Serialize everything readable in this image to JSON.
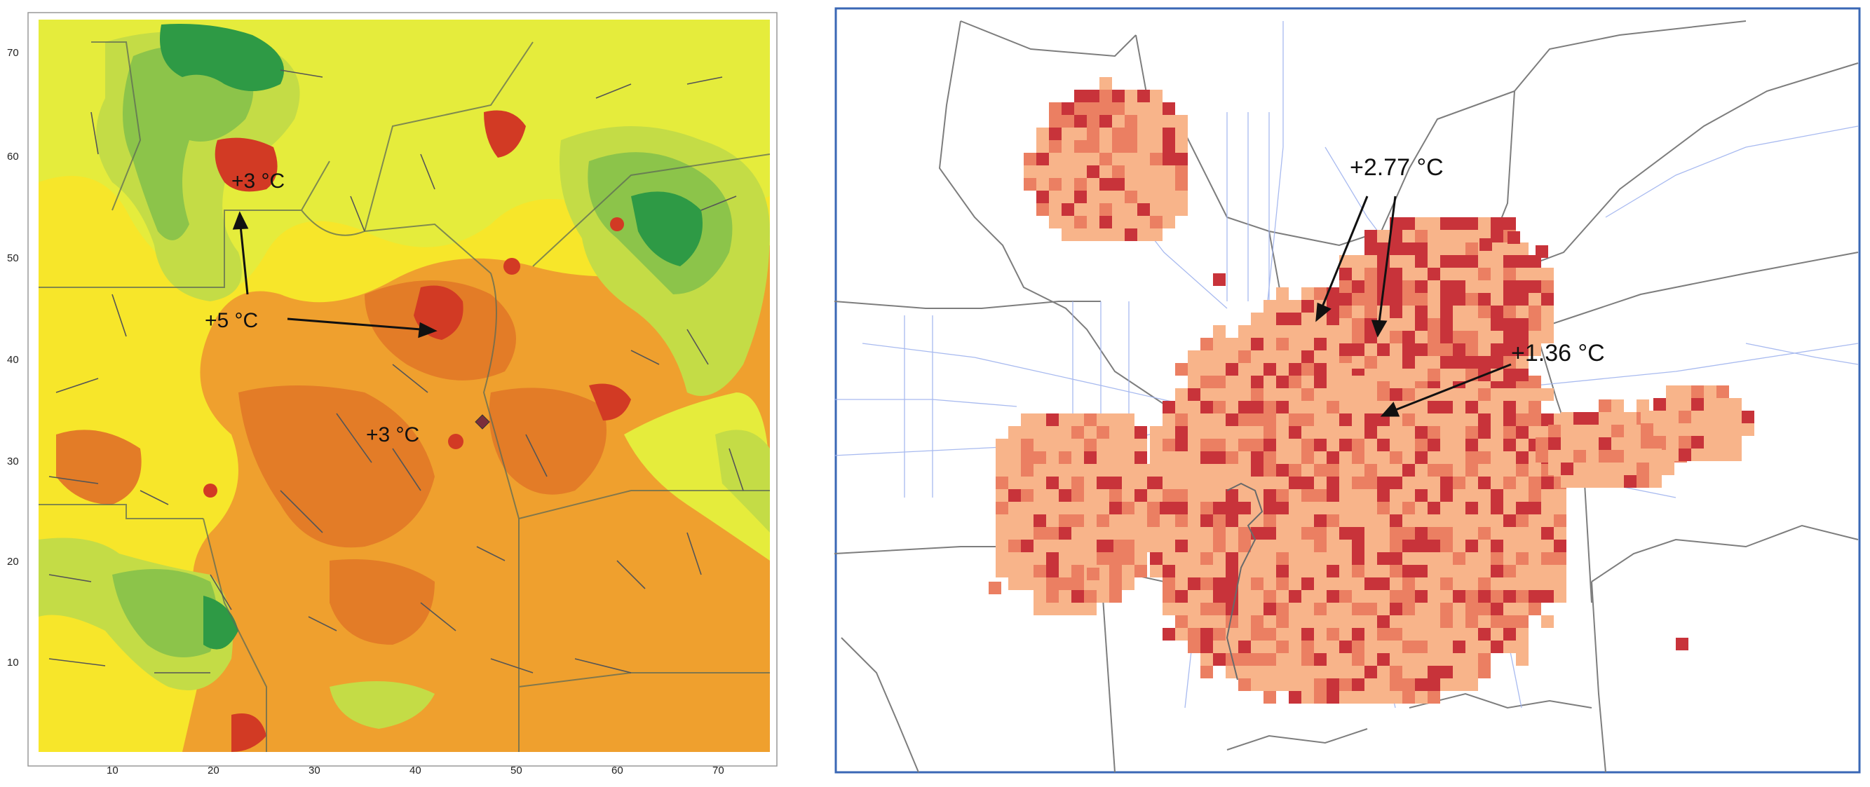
{
  "left_map": {
    "x_ticks": [
      "10",
      "20",
      "30",
      "40",
      "50",
      "60",
      "70"
    ],
    "y_ticks": [
      "10",
      "20",
      "30",
      "40",
      "50",
      "60",
      "70"
    ],
    "annotations": [
      {
        "text": "+3 °C"
      },
      {
        "text": "+5 °C"
      },
      {
        "text": "+3 °C"
      }
    ],
    "colors": {
      "yellow": "#f7e62a",
      "light_yellow": "#e5ec3c",
      "yellow_green": "#c4dc46",
      "green": "#8cc44a",
      "dark_green": "#2e9a45",
      "orange": "#efa02e",
      "dark_orange": "#e37c27",
      "red": "#d23a24"
    }
  },
  "right_map": {
    "annotations": [
      {
        "text": "+2.77 °C"
      },
      {
        "text": "+1.36 °C"
      }
    ],
    "colors": {
      "frame": "#3a67b5",
      "light_cell": "#f8b48a",
      "mid_cell": "#eb7f62",
      "dark_cell": "#c8333a",
      "road": "#9fb3ee",
      "boundary": "#7d7d7d"
    }
  }
}
